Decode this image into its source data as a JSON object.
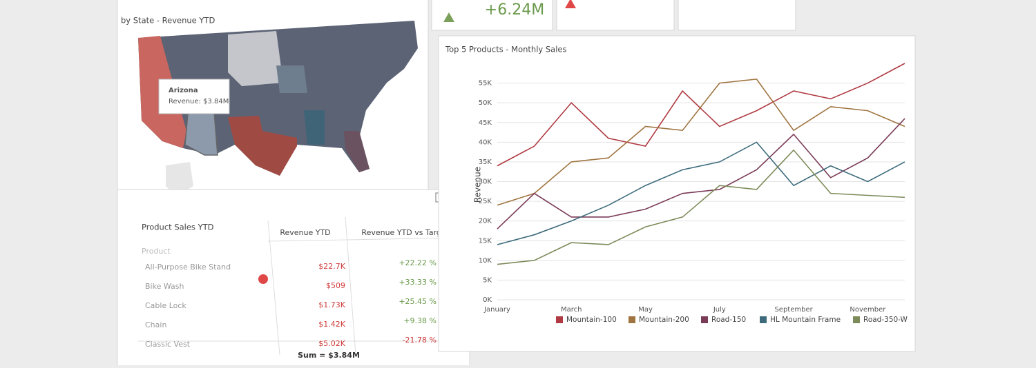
{
  "kpi": {
    "value": "+6.24M"
  },
  "map": {
    "title": "by State - Revenue YTD",
    "tooltip": {
      "state": "Arizona",
      "text": "Revenue: $3.84M"
    }
  },
  "table": {
    "title": "Product Sales YTD",
    "columns": [
      "Product",
      "Revenue YTD",
      "Revenue YTD vs Target"
    ],
    "rows": [
      [
        "All-Purpose Bike Stand",
        "$22.7K",
        "+22.22 %"
      ],
      [
        "Bike Wash",
        "$509",
        "+33.33 %"
      ],
      [
        "Cable Lock",
        "$1.73K",
        "+25.45 %"
      ],
      [
        "Chain",
        "$1.42K",
        "+9.38 %"
      ],
      [
        "Classic Vest",
        "$5.02K",
        "-21.78 %"
      ]
    ],
    "total": "Sum = $3.84M"
  },
  "chart_data": {
    "type": "line",
    "title": "Top 5 Products - Monthly Sales",
    "y_label": "Revenue",
    "categories": [
      "January",
      null,
      "March",
      null,
      "May",
      null,
      "July",
      null,
      "September",
      null,
      "November",
      null
    ],
    "ylim": [
      0,
      60000
    ],
    "yticks": [
      {
        "value": 0,
        "label": "0K"
      },
      {
        "value": 5000,
        "label": "5K"
      },
      {
        "value": 10000,
        "label": "10K"
      },
      {
        "value": 15000,
        "label": "15K"
      },
      {
        "value": 20000,
        "label": "20K"
      },
      {
        "value": 25000,
        "label": "25K"
      },
      {
        "value": 30000,
        "label": "30K"
      },
      {
        "value": 35000,
        "label": "35K"
      },
      {
        "value": 40000,
        "label": "40K"
      },
      {
        "value": 45000,
        "label": "45K"
      },
      {
        "value": 50000,
        "label": "50K"
      },
      {
        "value": 55000,
        "label": "55K"
      }
    ],
    "grid": true,
    "series": [
      {
        "name": "Mountain-100",
        "color": "#b03a42",
        "values": [
          34000,
          39000,
          50000,
          41000,
          39000,
          53000,
          44000,
          48000,
          53000,
          51000,
          55000,
          60000
        ]
      },
      {
        "name": "Mountain-200",
        "color": "#a07440",
        "values": [
          24000,
          27000,
          35000,
          36000,
          44000,
          43000,
          55000,
          56000,
          43000,
          49000,
          48000,
          44000
        ]
      },
      {
        "name": "Road-150",
        "color": "#7a3b57",
        "values": [
          18000,
          27000,
          21000,
          21000,
          23000,
          27000,
          28000,
          33000,
          42000,
          31000,
          36000,
          46000
        ]
      },
      {
        "name": "HL Mountain Frame",
        "color": "#3d6b7c",
        "values": [
          14000,
          16500,
          20000,
          24000,
          29000,
          33000,
          35000,
          40000,
          29000,
          34000,
          30000,
          35000
        ]
      },
      {
        "name": "Road-350-W",
        "color": "#7d8b5a",
        "values": [
          9000,
          10000,
          14500,
          14000,
          18500,
          21000,
          29000,
          28000,
          38000,
          27000,
          26500,
          26000
        ]
      }
    ]
  }
}
